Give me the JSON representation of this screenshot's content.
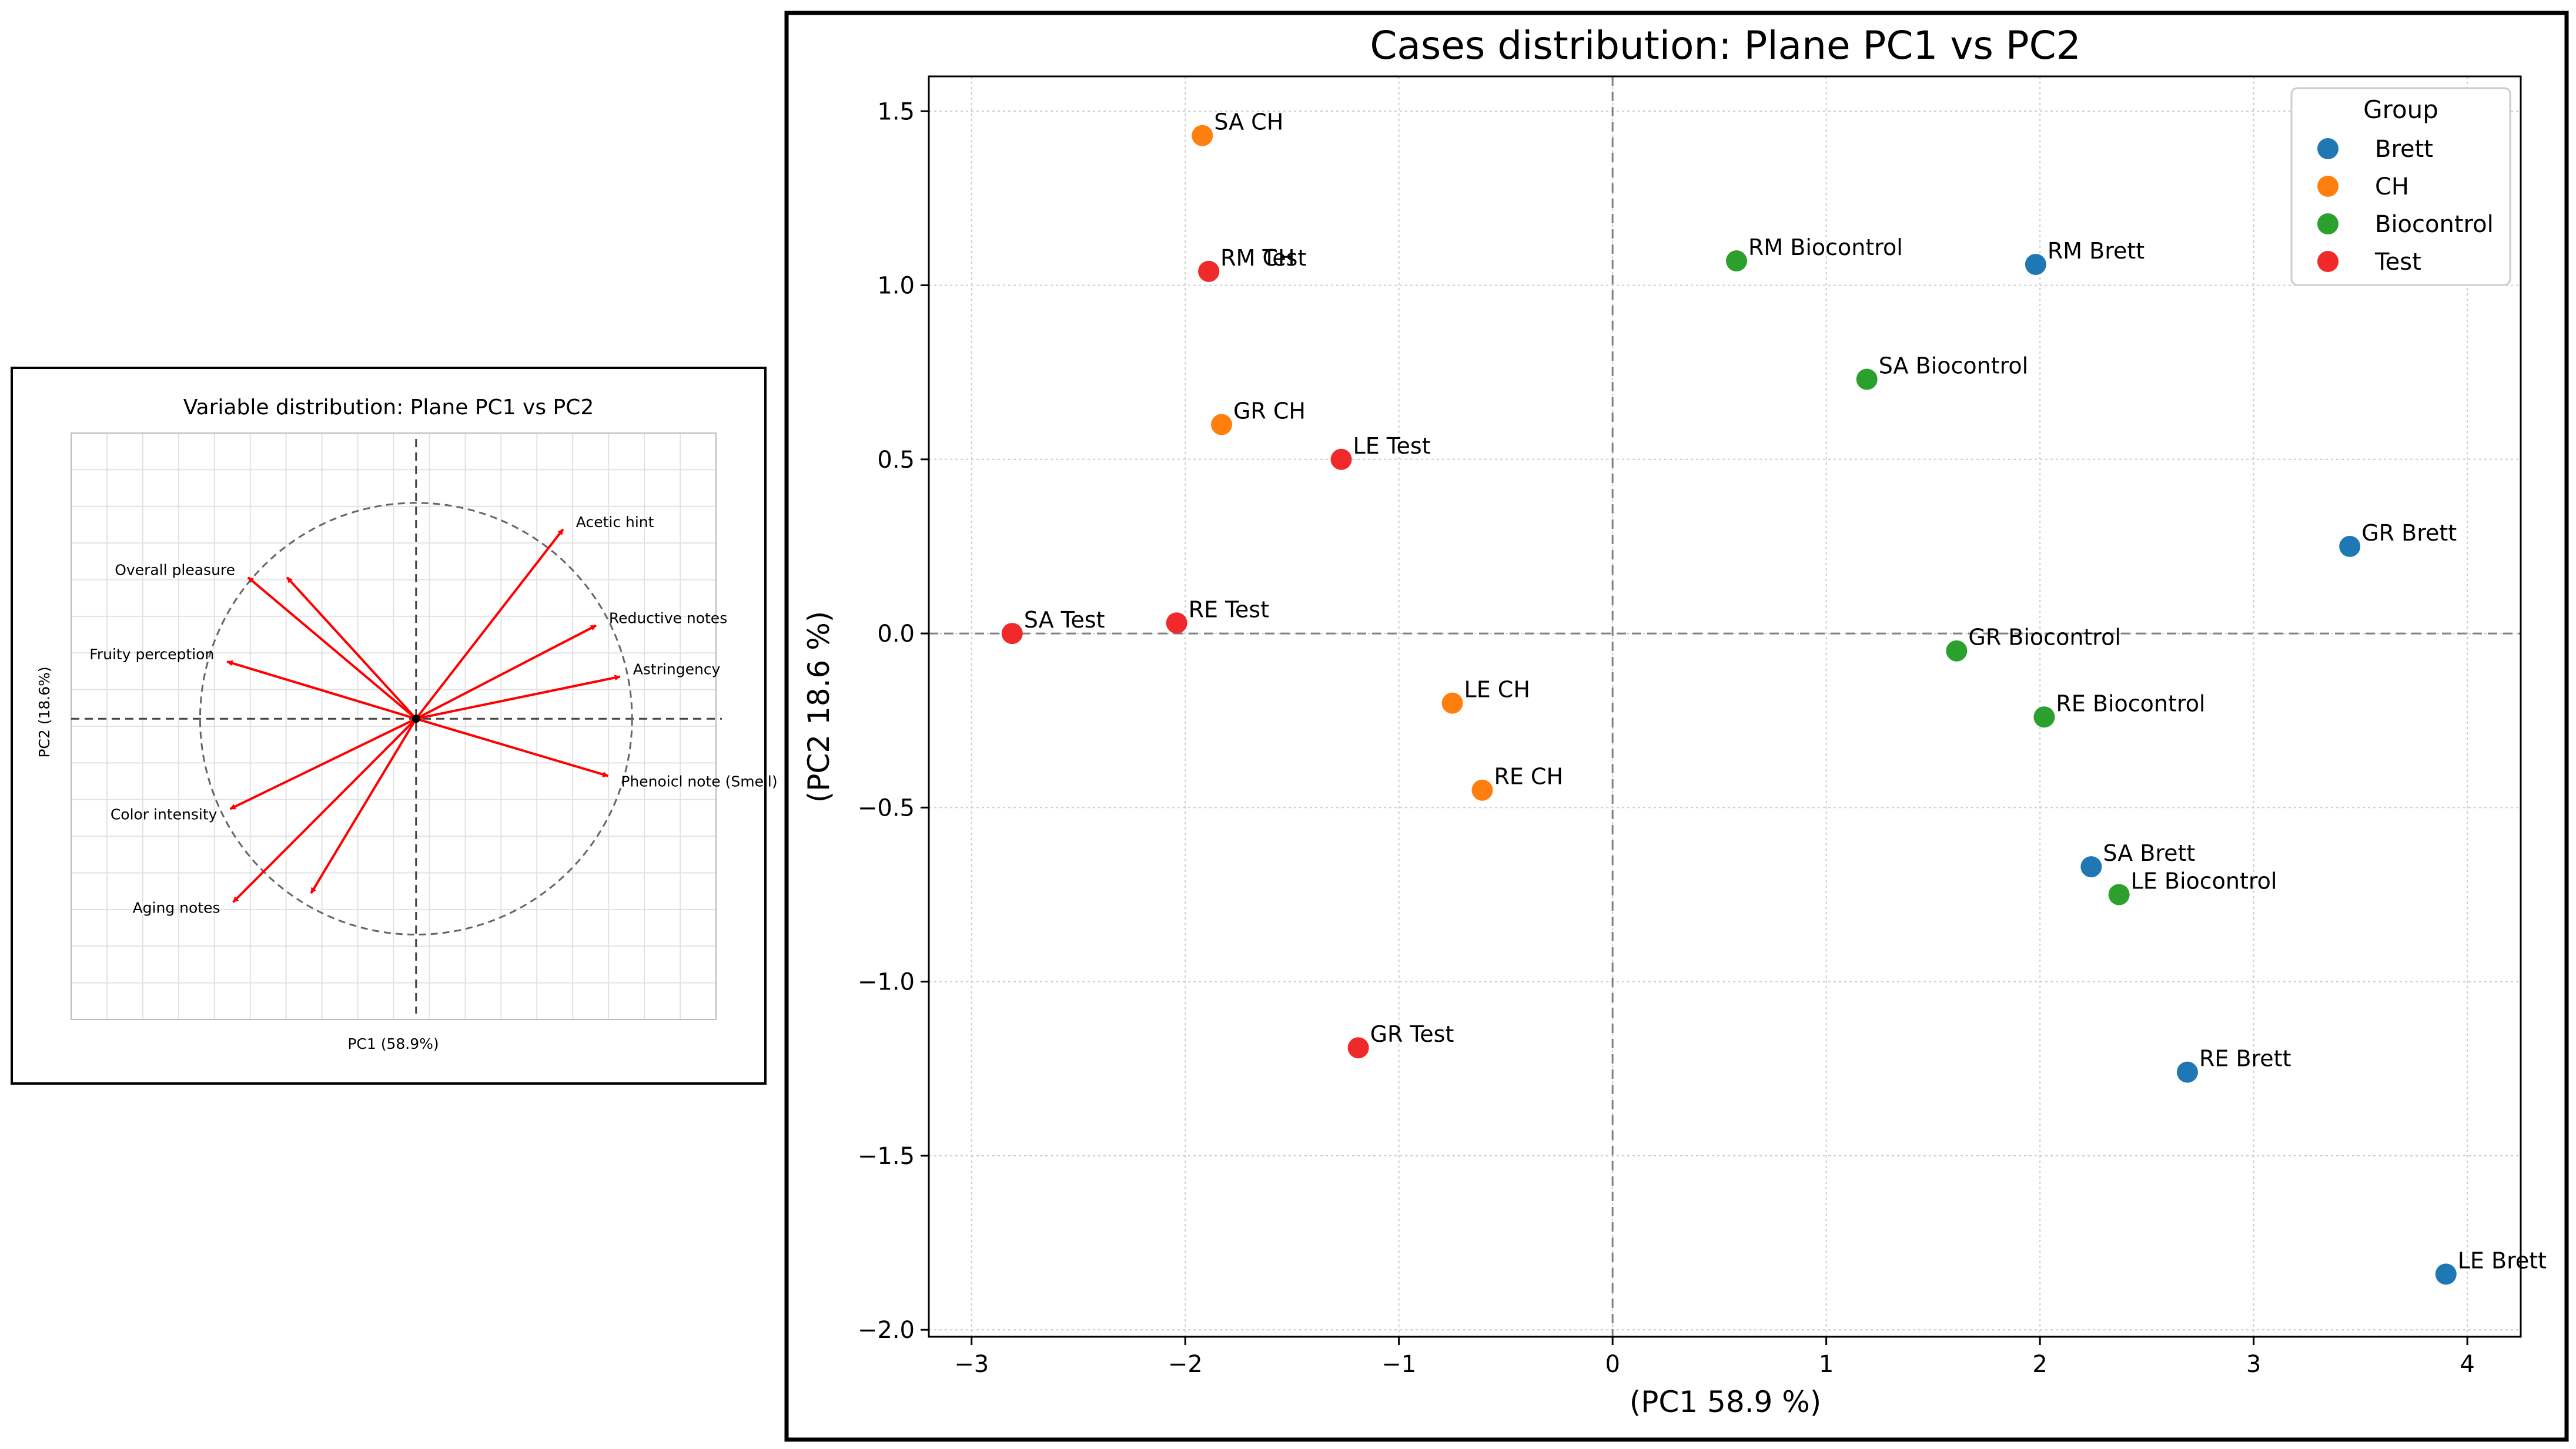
{
  "chart_data": [
    {
      "type": "biplot",
      "title": "Variable distribution: Plane PC1 vs PC2",
      "xlabel": "PC1 (58.9%)",
      "ylabel": "PC2 (18.6%)",
      "xlim": [
        -1.15,
        1.0
      ],
      "ylim": [
        -1.0,
        0.95
      ],
      "grid": true,
      "circle_radius": 0.72,
      "vectors": [
        {
          "label": "Acetic hint",
          "x": 0.49,
          "y": 0.63
        },
        {
          "label": "Reductive notes",
          "x": 0.6,
          "y": 0.31
        },
        {
          "label": "Astringency",
          "x": 0.68,
          "y": 0.14
        },
        {
          "label": "Phenoicl note (Smell)",
          "x": 0.64,
          "y": -0.19
        },
        {
          "label": "Overall pleasure",
          "x": -0.56,
          "y": 0.47
        },
        {
          "label": "",
          "x": -0.43,
          "y": 0.47
        },
        {
          "label": "Fruity perception",
          "x": -0.63,
          "y": 0.19
        },
        {
          "label": "Color intensity",
          "x": -0.62,
          "y": -0.3
        },
        {
          "label": "Aging notes",
          "x": -0.61,
          "y": -0.61
        },
        {
          "label": "",
          "x": -0.35,
          "y": -0.58
        }
      ]
    },
    {
      "type": "scatter",
      "title": "Cases distribution: Plane PC1 vs PC2",
      "xlabel": "(PC1 58.9 %)",
      "ylabel": "(PC2 18.6 %)",
      "xlim": [
        -3.2,
        4.25
      ],
      "ylim": [
        -2.02,
        1.6
      ],
      "xticks": [
        -3,
        -2,
        -1,
        0,
        1,
        2,
        3,
        4
      ],
      "yticks": [
        -2.0,
        -1.5,
        -1.0,
        -0.5,
        0.0,
        0.5,
        1.0,
        1.5
      ],
      "grid": true,
      "legend": {
        "title": "Group",
        "placement": "top-right"
      },
      "series": [
        {
          "name": "Brett",
          "color": "#1f77b4",
          "points": [
            {
              "label": "RM Brett",
              "x": 1.98,
              "y": 1.06
            },
            {
              "label": "GR Brett",
              "x": 3.45,
              "y": 0.25
            },
            {
              "label": "SA Brett",
              "x": 2.24,
              "y": -0.67
            },
            {
              "label": "RE Brett",
              "x": 2.69,
              "y": -1.26
            },
            {
              "label": "LE Brett",
              "x": 3.9,
              "y": -1.84
            }
          ]
        },
        {
          "name": "CH",
          "color": "#ff7f0e",
          "points": [
            {
              "label": "SA CH",
              "x": -1.92,
              "y": 1.43
            },
            {
              "label": "RM CH",
              "x": -1.89,
              "y": 1.04
            },
            {
              "label": "GR CH",
              "x": -1.83,
              "y": 0.6
            },
            {
              "label": "LE CH",
              "x": -0.75,
              "y": -0.2
            },
            {
              "label": "RE CH",
              "x": -0.61,
              "y": -0.45
            }
          ]
        },
        {
          "name": "Biocontrol",
          "color": "#2ca02c",
          "points": [
            {
              "label": "RM Biocontrol",
              "x": 0.58,
              "y": 1.07
            },
            {
              "label": "SA Biocontrol",
              "x": 1.19,
              "y": 0.73
            },
            {
              "label": "GR Biocontrol",
              "x": 1.61,
              "y": -0.05
            },
            {
              "label": "RE Biocontrol",
              "x": 2.02,
              "y": -0.24
            },
            {
              "label": "LE Biocontrol",
              "x": 2.37,
              "y": -0.75
            }
          ]
        },
        {
          "name": "Test",
          "color": "#f02a2a",
          "points": [
            {
              "label": "RM Test",
              "x": -1.89,
              "y": 1.04
            },
            {
              "label": "LE Test",
              "x": -1.27,
              "y": 0.5
            },
            {
              "label": "SA Test",
              "x": -2.81,
              "y": 0.0
            },
            {
              "label": "RE Test",
              "x": -2.04,
              "y": 0.03
            },
            {
              "label": "GR Test",
              "x": -1.19,
              "y": -1.19
            }
          ]
        }
      ]
    }
  ]
}
